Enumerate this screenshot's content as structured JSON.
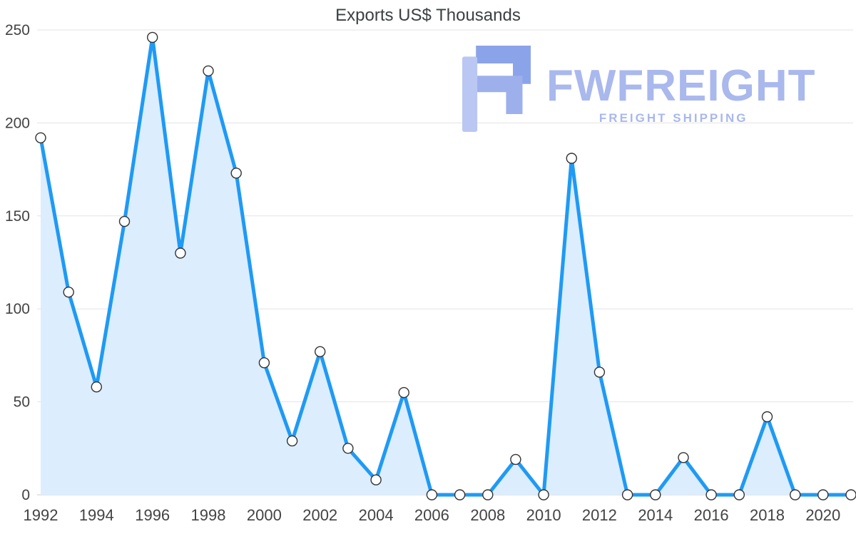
{
  "title": "Exports US$ Thousands",
  "logo": {
    "name": "FWFREIGHT",
    "tagline": "FREIGHT SHIPPING",
    "color": "#a9b8ed",
    "icon_dark": "#8ba3e8",
    "icon_mid": "#9db0ec",
    "icon_light": "#bac7f2"
  },
  "chart_data": {
    "type": "area",
    "title": "Exports US$ Thousands",
    "x": [
      1992,
      1993,
      1994,
      1995,
      1996,
      1997,
      1998,
      1999,
      2000,
      2001,
      2002,
      2003,
      2004,
      2005,
      2006,
      2007,
      2008,
      2009,
      2010,
      2011,
      2012,
      2013,
      2014,
      2015,
      2016,
      2017,
      2018,
      2019,
      2020,
      2021
    ],
    "values": [
      192,
      109,
      58,
      147,
      246,
      130,
      228,
      173,
      71,
      29,
      77,
      25,
      8,
      55,
      0,
      0,
      0,
      19,
      0,
      181,
      66,
      0,
      0,
      20,
      0,
      0,
      42,
      0,
      0,
      0
    ],
    "x_tick_labels": [
      "1992",
      "1994",
      "1996",
      "1998",
      "2000",
      "2002",
      "2004",
      "2006",
      "2008",
      "2010",
      "2012",
      "2014",
      "2016",
      "2018",
      "2020"
    ],
    "y_ticks": [
      0,
      50,
      100,
      150,
      200,
      250
    ],
    "xlim": [
      1992,
      2021
    ],
    "ylim": [
      0,
      250
    ],
    "line_color": "#1f9af5",
    "fill_color": "#dcedfd",
    "marker": "open-circle",
    "marker_fill": "#ffffff",
    "marker_stroke": "#333333",
    "grid": true,
    "grid_color": "#e3e3e3",
    "baseline_color": "#cfcfcf",
    "axis_label_color": "#434343",
    "legend": "none"
  }
}
